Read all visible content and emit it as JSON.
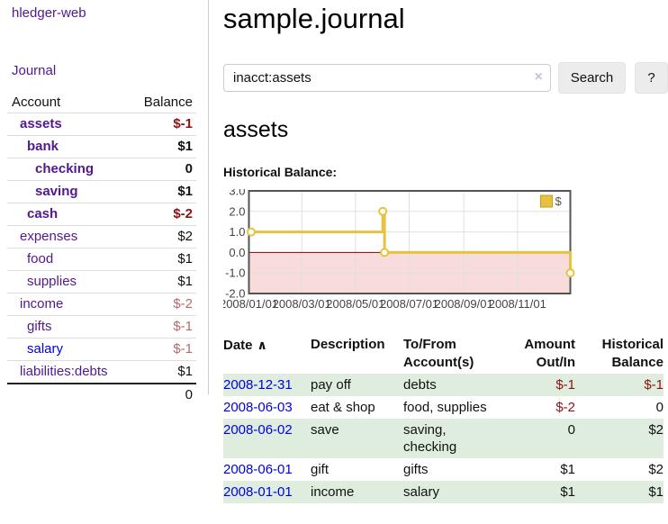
{
  "app": {
    "title": "hledger-web"
  },
  "sidebar": {
    "nav": {
      "journal_label": "Journal"
    },
    "accounts_table": {
      "headers": {
        "account": "Account",
        "balance": "Balance"
      },
      "rows": [
        {
          "name": "assets",
          "balance": "$-1",
          "depth": 0,
          "bold": true,
          "balance_class": "neg-strong"
        },
        {
          "name": "bank",
          "balance": "$1",
          "depth": 1,
          "bold": true,
          "balance_class": ""
        },
        {
          "name": "checking",
          "balance": "0",
          "depth": 2,
          "bold": true,
          "balance_class": ""
        },
        {
          "name": "saving",
          "balance": "$1",
          "depth": 2,
          "bold": true,
          "balance_class": ""
        },
        {
          "name": "cash",
          "balance": "$-2",
          "depth": 1,
          "bold": true,
          "balance_class": "neg-strong"
        },
        {
          "name": "expenses",
          "balance": "$2",
          "depth": 0,
          "bold": false,
          "balance_class": ""
        },
        {
          "name": "food",
          "balance": "$1",
          "depth": 1,
          "bold": false,
          "balance_class": ""
        },
        {
          "name": "supplies",
          "balance": "$1",
          "depth": 1,
          "bold": false,
          "balance_class": ""
        },
        {
          "name": "income",
          "balance": "$-2",
          "depth": 0,
          "bold": false,
          "balance_class": "neg-light"
        },
        {
          "name": "gifts",
          "balance": "$-1",
          "depth": 1,
          "bold": false,
          "balance_class": "neg-light"
        },
        {
          "name": "salary",
          "balance": "$-1",
          "depth": 1,
          "bold": false,
          "balance_class": "neg-light",
          "link_blue": true
        },
        {
          "name": "liabilities:debts",
          "balance": "$1",
          "depth": 0,
          "bold": false,
          "balance_class": ""
        }
      ],
      "total": "0"
    }
  },
  "main": {
    "title": "sample.journal",
    "search": {
      "value": "inacct:assets",
      "clear_icon": "×",
      "button_label": "Search",
      "help_label": "?"
    },
    "account_heading": "assets",
    "register_table": {
      "headers": [
        {
          "label": "Date",
          "sort_icon": "∧",
          "align": "left"
        },
        {
          "label": "Description",
          "align": "left"
        },
        {
          "label": "To/From Account(s)",
          "align": "left"
        },
        {
          "label": "Amount Out/In",
          "align": "right"
        },
        {
          "label": "Historical Balance",
          "align": "right"
        }
      ],
      "rows": [
        {
          "date": "2008-12-31",
          "description": "pay off",
          "accounts": "debts",
          "amount": "$-1",
          "amount_class": "neg-strong",
          "balance": "$-1",
          "balance_class": "neg-strong"
        },
        {
          "date": "2008-06-03",
          "description": "eat & shop",
          "accounts": "food, supplies",
          "amount": "$-2",
          "amount_class": "neg-strong",
          "balance": "0",
          "balance_class": ""
        },
        {
          "date": "2008-06-02",
          "description": "save",
          "accounts": "saving, checking",
          "amount": "0",
          "amount_class": "",
          "balance": "$2",
          "balance_class": ""
        },
        {
          "date": "2008-06-01",
          "description": "gift",
          "accounts": "gifts",
          "amount": "$1",
          "amount_class": "",
          "balance": "$2",
          "balance_class": ""
        },
        {
          "date": "2008-01-01",
          "description": "income",
          "accounts": "salary",
          "amount": "$1",
          "amount_class": "",
          "balance": "$1",
          "balance_class": ""
        }
      ]
    }
  },
  "chart_data": {
    "type": "line",
    "title": "Historical Balance:",
    "style": "steps-after",
    "series": [
      {
        "name": "$",
        "color": "#e8c23e",
        "points": [
          {
            "date": "2008-01-01",
            "day": 0,
            "value": 1.0
          },
          {
            "date": "2008-06-01",
            "day": 152,
            "value": 2.0
          },
          {
            "date": "2008-06-03",
            "day": 154,
            "value": 0.0
          },
          {
            "date": "2008-12-31",
            "day": 365,
            "value": -1.0
          }
        ]
      }
    ],
    "x_ticks": [
      {
        "label": "2008/01/01",
        "day": 0
      },
      {
        "label": "2008/03/01",
        "day": 60
      },
      {
        "label": "2008/05/01",
        "day": 121
      },
      {
        "label": "2008/07/01",
        "day": 182
      },
      {
        "label": "2008/09/01",
        "day": 244
      },
      {
        "label": "2008/11/01",
        "day": 305
      }
    ],
    "y_ticks": [
      3.0,
      2.0,
      1.0,
      0.0,
      -1.0,
      -2.0
    ],
    "xlim_days": [
      0,
      365
    ],
    "ylim": [
      -2,
      3
    ],
    "grid": true,
    "legend_position": "top-right",
    "colors": {
      "negative_region": "#f8dbdb",
      "zero_line": "#7c0505",
      "border": "#545454",
      "gridline": "#e0e0e0",
      "tick_text": "#444444",
      "legend_square_border": "#c19b2b"
    }
  }
}
